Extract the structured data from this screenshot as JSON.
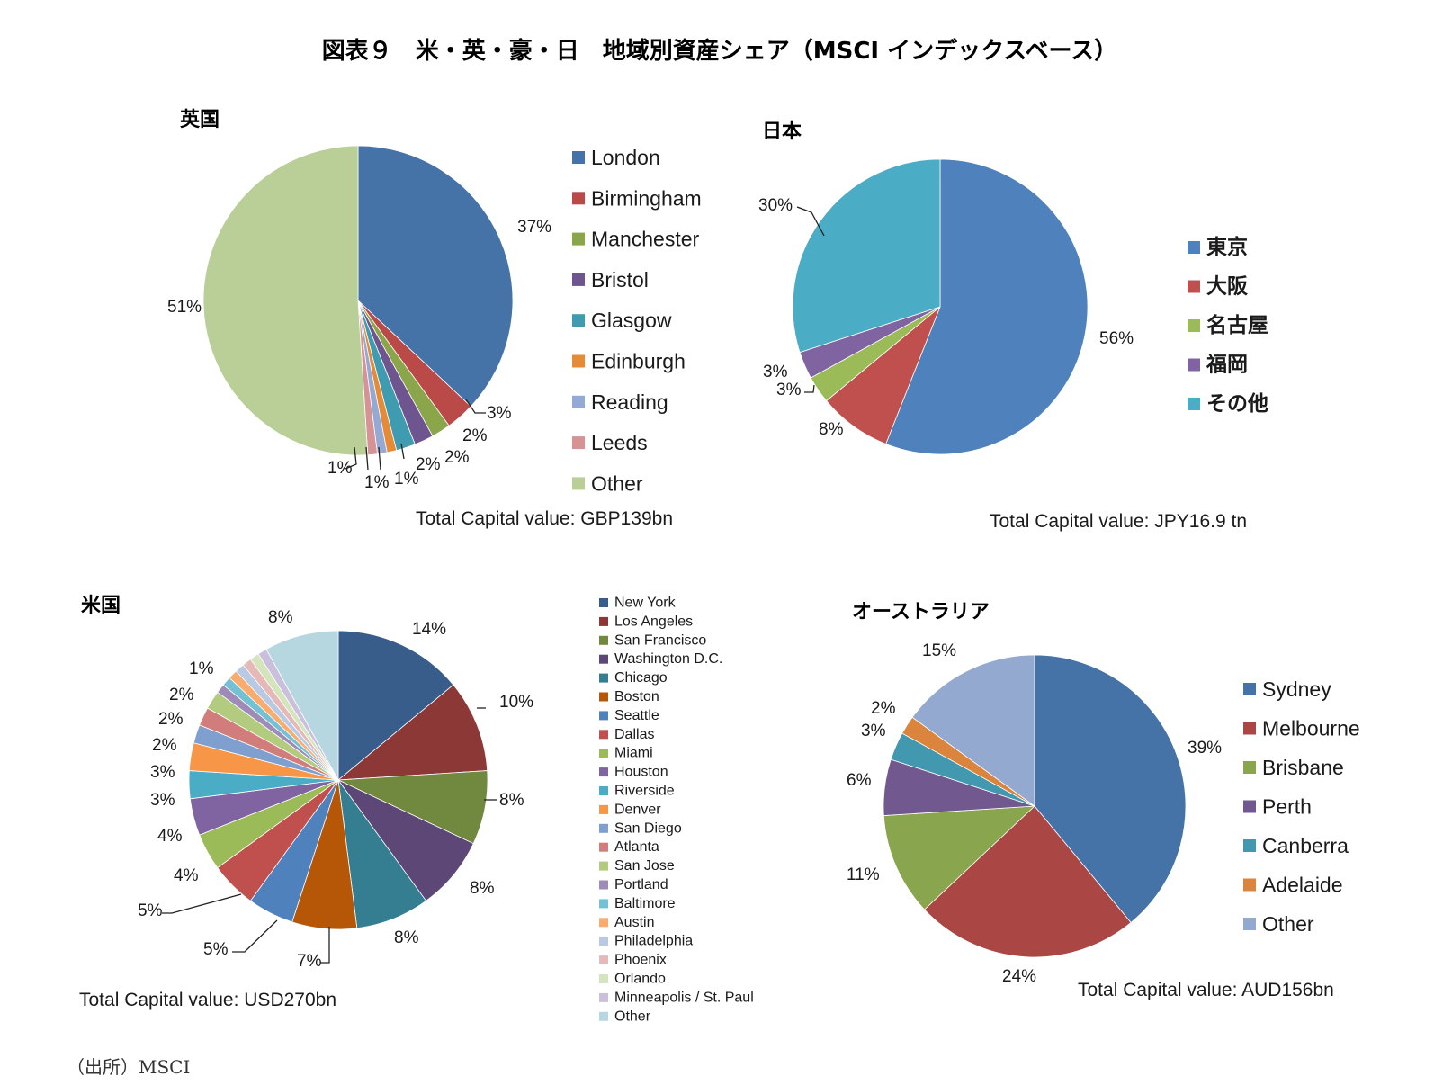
{
  "figure": {
    "title": "図表９　米・英・豪・日　地域別資産シェア（MSCI インデックスベース）",
    "source": "（出所）MSCI"
  },
  "chart_data": [
    {
      "id": "uk",
      "type": "pie",
      "title": "英国",
      "total_label": "Total Capital value: GBP139bn",
      "slices": [
        {
          "name": "London",
          "value": 37,
          "label": "37%",
          "color": "#4572A7"
        },
        {
          "name": "Birmingham",
          "value": 3,
          "label": "3%",
          "color": "#B94A48"
        },
        {
          "name": "Manchester",
          "value": 2,
          "label": "2%",
          "color": "#8AA54A"
        },
        {
          "name": "Bristol",
          "value": 2,
          "label": "2%",
          "color": "#6E558F"
        },
        {
          "name": "Glasgow",
          "value": 2,
          "label": "2%",
          "color": "#3E9BB0"
        },
        {
          "name": "Edinburgh",
          "value": 1,
          "label": "1%",
          "color": "#E58A36"
        },
        {
          "name": "Reading",
          "value": 1,
          "label": "1%",
          "color": "#94A9D3"
        },
        {
          "name": "Leeds",
          "value": 1,
          "label": "1%",
          "color": "#D69294"
        },
        {
          "name": "Other",
          "value": 51,
          "label": "51%",
          "color": "#B9CF97"
        }
      ]
    },
    {
      "id": "japan",
      "type": "pie",
      "title": "日本",
      "total_label": "Total Capital value: JPY16.9 tn",
      "slices": [
        {
          "name": "東京",
          "value": 56,
          "label": "56%",
          "color": "#4F81BD"
        },
        {
          "name": "大阪",
          "value": 8,
          "label": "8%",
          "color": "#C0504D"
        },
        {
          "name": "名古屋",
          "value": 3,
          "label": "3%",
          "color": "#9BBB59"
        },
        {
          "name": "福岡",
          "value": 3,
          "label": "3%",
          "color": "#8064A2"
        },
        {
          "name": "その他",
          "value": 30,
          "label": "30%",
          "color": "#4BACC6"
        }
      ]
    },
    {
      "id": "us",
      "type": "pie",
      "title": "米国",
      "total_label": "Total Capital value: USD270bn",
      "slices": [
        {
          "name": "New York",
          "value": 14,
          "label": "14%",
          "color": "#385D8A"
        },
        {
          "name": "Los Angeles",
          "value": 10,
          "label": "10%",
          "color": "#8C3836"
        },
        {
          "name": "San Francisco",
          "value": 8,
          "label": "8%",
          "color": "#71893F"
        },
        {
          "name": "Washington D.C.",
          "value": 8,
          "label": "8%",
          "color": "#5C4776"
        },
        {
          "name": "Chicago",
          "value": 8,
          "label": "8%",
          "color": "#357D91"
        },
        {
          "name": "Boston",
          "value": 7,
          "label": "7%",
          "color": "#B65708"
        },
        {
          "name": "Seattle",
          "value": 5,
          "label": "5%",
          "color": "#4F81BD"
        },
        {
          "name": "Dallas",
          "value": 5,
          "label": "5%",
          "color": "#C0504D"
        },
        {
          "name": "Miami",
          "value": 4,
          "label": "4%",
          "color": "#9BBB59"
        },
        {
          "name": "Houston",
          "value": 4,
          "label": "4%",
          "color": "#8064A2"
        },
        {
          "name": "Riverside",
          "value": 3,
          "label": "3%",
          "color": "#4BACC6"
        },
        {
          "name": "Denver",
          "value": 3,
          "label": "3%",
          "color": "#F79646"
        },
        {
          "name": "San Diego",
          "value": 2,
          "label": "2%",
          "color": "#7F9FCF"
        },
        {
          "name": "Atlanta",
          "value": 2,
          "label": "2%",
          "color": "#D07D7B"
        },
        {
          "name": "San Jose",
          "value": 2,
          "label": "2%",
          "color": "#B2CB7F"
        },
        {
          "name": "Portland",
          "value": 1,
          "label": "",
          "color": "#9F8BB8"
        },
        {
          "name": "Baltimore",
          "value": 1,
          "label": "1%",
          "color": "#74C0D4"
        },
        {
          "name": "Austin",
          "value": 1,
          "label": "",
          "color": "#F9AC6D"
        },
        {
          "name": "Philadelphia",
          "value": 1,
          "label": "",
          "color": "#B8C9E3"
        },
        {
          "name": "Phoenix",
          "value": 1,
          "label": "",
          "color": "#E4B9B8"
        },
        {
          "name": "Orlando",
          "value": 1,
          "label": "",
          "color": "#D4E4BC"
        },
        {
          "name": "Minneapolis / St. Paul",
          "value": 1,
          "label": "",
          "color": "#CBC0DB"
        },
        {
          "name": "Other",
          "value": 8,
          "label": "8%",
          "color": "#B7D7E0"
        }
      ]
    },
    {
      "id": "australia",
      "type": "pie",
      "title": "オーストラリア",
      "total_label": "Total Capital value: AUD156bn",
      "slices": [
        {
          "name": "Sydney",
          "value": 39,
          "label": "39%",
          "color": "#4572A7"
        },
        {
          "name": "Melbourne",
          "value": 24,
          "label": "24%",
          "color": "#AA4643"
        },
        {
          "name": "Brisbane",
          "value": 11,
          "label": "11%",
          "color": "#89A54E"
        },
        {
          "name": "Perth",
          "value": 6,
          "label": "6%",
          "color": "#71588F"
        },
        {
          "name": "Canberra",
          "value": 3,
          "label": "3%",
          "color": "#4198AF"
        },
        {
          "name": "Adelaide",
          "value": 2,
          "label": "2%",
          "color": "#DB843D"
        },
        {
          "name": "Other",
          "value": 15,
          "label": "15%",
          "color": "#93A9CF"
        }
      ]
    }
  ]
}
